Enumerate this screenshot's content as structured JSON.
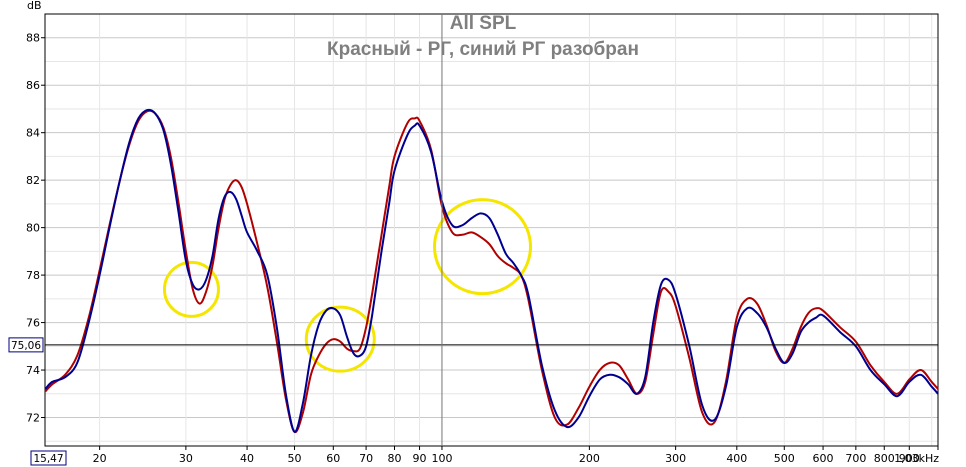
{
  "chart_data": {
    "type": "line",
    "title": "All SPL",
    "subtitle": "Красный - РГ, синий РГ разобран",
    "ylabel": "dB",
    "xlabel": "",
    "x_scale": "log",
    "xlim": [
      15.47,
      1030
    ],
    "ylim": [
      70.8,
      89
    ],
    "grid": true,
    "legend": "none",
    "y_ticks": [
      72,
      74,
      76,
      78,
      80,
      82,
      84,
      86,
      88
    ],
    "y_tick_labels": [
      "72",
      "74",
      "76",
      "78",
      "80",
      "82",
      "84",
      "86",
      "88"
    ],
    "x_ticks": [
      20,
      30,
      40,
      50,
      60,
      70,
      80,
      90,
      100,
      200,
      300,
      400,
      500,
      600,
      700,
      800,
      900,
      1030
    ],
    "x_tick_labels": [
      "20",
      "30",
      "40",
      "50",
      "60",
      "70",
      "80",
      "90",
      "100",
      "200",
      "300",
      "400",
      "500",
      "600",
      "700",
      "800",
      "900",
      "1,03kHz"
    ],
    "x_min_label": "15,47",
    "cursor": {
      "x": 100,
      "y": 75.06,
      "y_label": "75,06"
    },
    "series": [
      {
        "color": "#b00000",
        "x": [
          15.5,
          16,
          17,
          18,
          19,
          20,
          21,
          22,
          23,
          24,
          25,
          26,
          27,
          28,
          29,
          30,
          31,
          32,
          33,
          34,
          35,
          36,
          37,
          38,
          39,
          40,
          42,
          44,
          46,
          48,
          50,
          52,
          54,
          56,
          58,
          60,
          62,
          64,
          66,
          68,
          70,
          72,
          75,
          78,
          80,
          85,
          88,
          90,
          95,
          100,
          105,
          110,
          115,
          120,
          125,
          130,
          135,
          140,
          145,
          150,
          160,
          170,
          180,
          190,
          200,
          210,
          220,
          230,
          240,
          250,
          260,
          270,
          280,
          290,
          300,
          320,
          340,
          360,
          380,
          400,
          420,
          440,
          460,
          480,
          500,
          520,
          540,
          560,
          580,
          600,
          650,
          700,
          750,
          800,
          850,
          900,
          950,
          1000,
          1030
        ],
        "y": [
          73.1,
          73.4,
          73.8,
          74.6,
          76.2,
          78.2,
          80.2,
          82.0,
          83.5,
          84.5,
          84.9,
          84.8,
          84.2,
          82.9,
          81.0,
          79.0,
          77.4,
          76.8,
          77.3,
          78.4,
          80.0,
          81.2,
          81.8,
          82.0,
          81.7,
          81.0,
          79.3,
          77.5,
          75.2,
          72.8,
          71.4,
          72.2,
          73.8,
          74.6,
          75.1,
          75.3,
          75.2,
          74.9,
          74.8,
          74.9,
          75.8,
          77.2,
          79.5,
          81.7,
          83.0,
          84.4,
          84.6,
          84.5,
          83.3,
          80.9,
          79.8,
          79.7,
          79.8,
          79.6,
          79.3,
          78.8,
          78.5,
          78.3,
          78.0,
          77.0,
          74.0,
          72.0,
          71.7,
          72.4,
          73.3,
          74.0,
          74.3,
          74.2,
          73.6,
          73.0,
          73.5,
          75.5,
          77.3,
          77.3,
          76.7,
          74.5,
          72.2,
          71.8,
          73.5,
          76.2,
          77.0,
          76.8,
          75.9,
          74.8,
          74.3,
          74.9,
          75.8,
          76.4,
          76.6,
          76.5,
          75.8,
          75.2,
          74.2,
          73.5,
          73.0,
          73.6,
          74.0,
          73.5,
          73.2
        ]
      },
      {
        "color": "#000090",
        "x": [
          15.5,
          16,
          17,
          18,
          19,
          20,
          21,
          22,
          23,
          24,
          25,
          26,
          27,
          28,
          29,
          30,
          31,
          32,
          33,
          34,
          35,
          36,
          37,
          38,
          39,
          40,
          42,
          44,
          46,
          48,
          50,
          52,
          54,
          56,
          58,
          60,
          62,
          64,
          66,
          68,
          70,
          72,
          75,
          78,
          80,
          85,
          88,
          90,
          95,
          100,
          105,
          110,
          115,
          120,
          125,
          130,
          135,
          140,
          145,
          150,
          160,
          170,
          180,
          190,
          200,
          210,
          220,
          230,
          240,
          250,
          260,
          270,
          280,
          290,
          300,
          320,
          340,
          360,
          380,
          400,
          420,
          440,
          460,
          480,
          500,
          520,
          540,
          560,
          580,
          600,
          650,
          700,
          750,
          800,
          850,
          900,
          950,
          1000,
          1030
        ],
        "y": [
          73.2,
          73.5,
          73.7,
          74.3,
          76.0,
          78.0,
          80.1,
          82.0,
          83.6,
          84.6,
          84.95,
          84.8,
          84.1,
          82.6,
          80.6,
          78.6,
          77.6,
          77.4,
          77.8,
          78.8,
          80.4,
          81.3,
          81.5,
          81.2,
          80.5,
          79.8,
          79.0,
          78.0,
          75.8,
          73.0,
          71.4,
          72.6,
          74.6,
          75.9,
          76.5,
          76.6,
          76.3,
          75.4,
          74.7,
          74.6,
          75.0,
          76.3,
          78.8,
          81.0,
          82.4,
          83.9,
          84.3,
          84.3,
          83.2,
          81.1,
          80.1,
          80.1,
          80.4,
          80.6,
          80.4,
          79.7,
          78.9,
          78.5,
          78.0,
          77.2,
          74.2,
          72.3,
          71.6,
          72.0,
          72.9,
          73.6,
          73.8,
          73.7,
          73.4,
          73.0,
          73.7,
          76.0,
          77.6,
          77.8,
          77.2,
          75.0,
          72.5,
          71.9,
          73.3,
          75.8,
          76.6,
          76.4,
          75.8,
          74.9,
          74.3,
          74.7,
          75.6,
          76.0,
          76.2,
          76.3,
          75.6,
          75.0,
          74.0,
          73.4,
          72.9,
          73.5,
          73.8,
          73.3,
          73.0
        ]
      }
    ],
    "annotations": [
      {
        "x": 30.8,
        "y": 77.4,
        "color": "#f5e600"
      },
      {
        "x": 62,
        "y": 75.3,
        "color": "#f5e600"
      },
      {
        "x": 121,
        "y": 79.2,
        "color": "#f5e600"
      }
    ]
  }
}
